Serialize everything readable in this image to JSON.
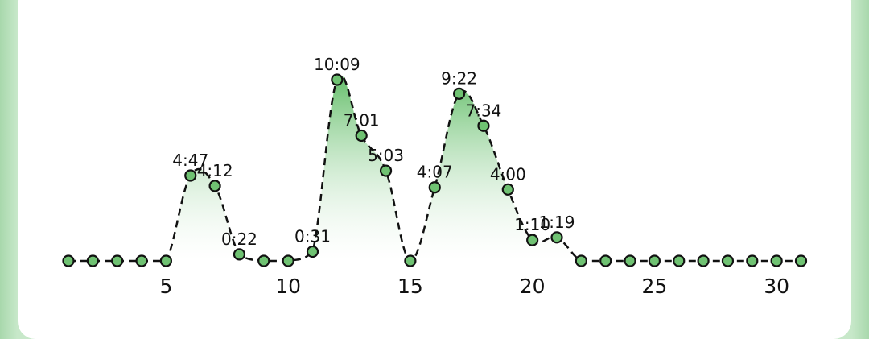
{
  "chart_data": {
    "type": "line",
    "x": [
      1,
      2,
      3,
      4,
      5,
      6,
      7,
      8,
      9,
      10,
      11,
      12,
      13,
      14,
      15,
      16,
      17,
      18,
      19,
      20,
      21,
      22,
      23,
      24,
      25,
      26,
      27,
      28,
      29,
      30,
      31
    ],
    "values_minutes": [
      0,
      0,
      0,
      0,
      0,
      287,
      252,
      22,
      0,
      0,
      31,
      609,
      421,
      303,
      0,
      247,
      562,
      454,
      240,
      70,
      79,
      0,
      0,
      0,
      0,
      0,
      0,
      0,
      0,
      0,
      0
    ],
    "data_labels": [
      "",
      "",
      "",
      "",
      "",
      "4:47",
      "4:12",
      "0:22",
      "",
      "",
      "0:31",
      "10:09",
      "7:01",
      "5:03",
      "",
      "4:07",
      "9:22",
      "7:34",
      "4:00",
      "1:10",
      "1:19",
      "",
      "",
      "",
      "",
      "",
      "",
      "",
      "",
      "",
      ""
    ],
    "x_ticks": [
      "5",
      "10",
      "15",
      "20",
      "25",
      "30"
    ],
    "x_tick_values": [
      5,
      10,
      15,
      20,
      25,
      30
    ],
    "xlim": [
      1,
      31
    ],
    "ylim": [
      0,
      609
    ],
    "grid": false,
    "colors": {
      "line": "#111111",
      "marker": "#6fc272",
      "fill_top": "#5dbb63",
      "fill_bottom": "#ffffff"
    }
  }
}
